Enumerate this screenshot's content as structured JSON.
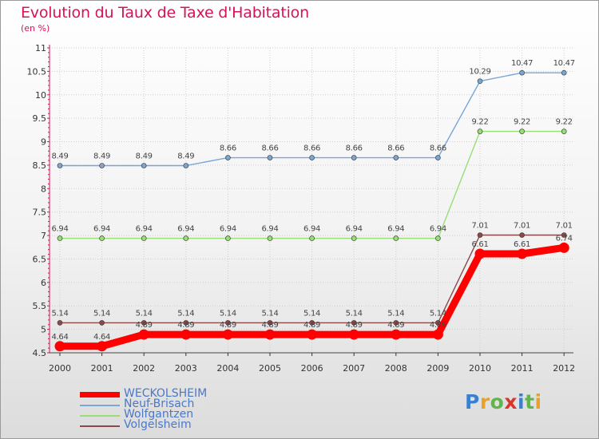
{
  "header": {
    "title": "Evolution du Taux de Taxe d'Habitation",
    "subtitle": "(en %)"
  },
  "logo": {
    "text": "Proxiti",
    "letter_colors": [
      "#3a7fd0",
      "#e8a12a",
      "#5fb64a",
      "#d9362b",
      "#3a7fd0",
      "#5fb64a",
      "#e8a12a"
    ]
  },
  "chart_data": {
    "type": "line",
    "title": "Evolution du Taux de Taxe d'Habitation",
    "ylabel": "(en %)",
    "xlabel": "",
    "x": [
      "2000",
      "2001",
      "2002",
      "2003",
      "2004",
      "2005",
      "2006",
      "2007",
      "2008",
      "2009",
      "2010",
      "2011",
      "2012"
    ],
    "ylim": [
      4.5,
      11
    ],
    "yticks": [
      "4.5",
      "5",
      "5.5",
      "6",
      "6.5",
      "7",
      "7.5",
      "8",
      "8.5",
      "9",
      "9.5",
      "10",
      "10.5",
      "11"
    ],
    "grid": true,
    "legend_position": "bottom-left",
    "series": [
      {
        "name": "WECKOLSHEIM",
        "color": "#ff0000",
        "values": [
          4.64,
          4.64,
          4.89,
          4.89,
          4.89,
          4.89,
          4.89,
          4.89,
          4.89,
          4.89,
          6.61,
          6.61,
          6.74
        ],
        "labels": [
          "4.64",
          "4.64",
          "4.89",
          "4.89",
          "4.89",
          "4.89",
          "4.89",
          "4.89",
          "4.89",
          "4.89",
          "6.61",
          "6.61",
          "6.74"
        ]
      },
      {
        "name": "Neuf-Brisach",
        "color": "#7aa6d6",
        "values": [
          8.49,
          8.49,
          8.49,
          8.49,
          8.66,
          8.66,
          8.66,
          8.66,
          8.66,
          8.66,
          10.29,
          10.47,
          10.47
        ],
        "labels": [
          "8.49",
          "8.49",
          "8.49",
          "8.49",
          "8.66",
          "8.66",
          "8.66",
          "8.66",
          "8.66",
          "8.66",
          "10.29",
          "10.47",
          "10.47"
        ]
      },
      {
        "name": "Wolfgantzen",
        "color": "#99dd77",
        "values": [
          6.94,
          6.94,
          6.94,
          6.94,
          6.94,
          6.94,
          6.94,
          6.94,
          6.94,
          6.94,
          9.22,
          9.22,
          9.22
        ],
        "labels": [
          "6.94",
          "6.94",
          "6.94",
          "6.94",
          "6.94",
          "6.94",
          "6.94",
          "6.94",
          "6.94",
          "6.94",
          "9.22",
          "9.22",
          "9.22"
        ]
      },
      {
        "name": "Volgelsheim",
        "color": "#8a4a4a",
        "values": [
          5.14,
          5.14,
          5.14,
          5.14,
          5.14,
          5.14,
          5.14,
          5.14,
          5.14,
          5.14,
          7.01,
          7.01,
          7.01
        ],
        "labels": [
          "5.14",
          "5.14",
          "5.14",
          "5.14",
          "5.14",
          "5.14",
          "5.14",
          "5.14",
          "5.14",
          "5.14",
          "7.01",
          "7.01",
          "7.01"
        ]
      }
    ]
  }
}
